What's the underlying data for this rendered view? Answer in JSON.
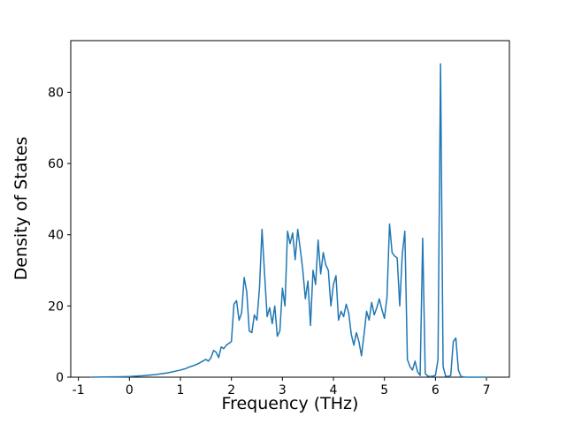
{
  "chart_data": {
    "type": "line",
    "title": "",
    "xlabel": "Frequency (THz)",
    "ylabel": "Density of States",
    "xlim": [
      -1.15,
      7.45
    ],
    "ylim": [
      0,
      94.5
    ],
    "xticks": [
      -1,
      0,
      1,
      2,
      3,
      4,
      5,
      6,
      7
    ],
    "yticks": [
      0,
      20,
      40,
      60,
      80
    ],
    "grid": false,
    "legend": "none",
    "line_color": "#1f77b4",
    "line_width": 1.5,
    "points": [
      [
        -0.75,
        0.0
      ],
      [
        -0.5,
        0.05
      ],
      [
        -0.25,
        0.1
      ],
      [
        0.0,
        0.2
      ],
      [
        0.25,
        0.4
      ],
      [
        0.5,
        0.7
      ],
      [
        0.75,
        1.2
      ],
      [
        1.0,
        2.0
      ],
      [
        1.05,
        2.2
      ],
      [
        1.1,
        2.4
      ],
      [
        1.15,
        2.7
      ],
      [
        1.2,
        3.0
      ],
      [
        1.25,
        3.2
      ],
      [
        1.3,
        3.5
      ],
      [
        1.35,
        3.8
      ],
      [
        1.4,
        4.2
      ],
      [
        1.45,
        4.6
      ],
      [
        1.5,
        5.0
      ],
      [
        1.55,
        4.5
      ],
      [
        1.6,
        5.5
      ],
      [
        1.65,
        7.5
      ],
      [
        1.7,
        7.0
      ],
      [
        1.75,
        5.5
      ],
      [
        1.8,
        8.5
      ],
      [
        1.85,
        8.0
      ],
      [
        1.9,
        9.0
      ],
      [
        1.95,
        9.5
      ],
      [
        2.0,
        10.0
      ],
      [
        2.05,
        20.5
      ],
      [
        2.1,
        21.5
      ],
      [
        2.15,
        16.0
      ],
      [
        2.2,
        18.0
      ],
      [
        2.25,
        28.0
      ],
      [
        2.3,
        24.0
      ],
      [
        2.35,
        13.0
      ],
      [
        2.4,
        12.5
      ],
      [
        2.45,
        17.5
      ],
      [
        2.5,
        16.0
      ],
      [
        2.55,
        25.0
      ],
      [
        2.6,
        41.5
      ],
      [
        2.65,
        29.0
      ],
      [
        2.7,
        17.0
      ],
      [
        2.75,
        19.5
      ],
      [
        2.8,
        15.0
      ],
      [
        2.85,
        20.0
      ],
      [
        2.9,
        11.5
      ],
      [
        2.95,
        13.0
      ],
      [
        3.0,
        25.0
      ],
      [
        3.05,
        20.0
      ],
      [
        3.1,
        41.0
      ],
      [
        3.15,
        37.5
      ],
      [
        3.2,
        40.5
      ],
      [
        3.25,
        33.0
      ],
      [
        3.3,
        41.5
      ],
      [
        3.35,
        36.0
      ],
      [
        3.4,
        30.0
      ],
      [
        3.45,
        22.0
      ],
      [
        3.5,
        27.0
      ],
      [
        3.55,
        14.5
      ],
      [
        3.6,
        30.0
      ],
      [
        3.65,
        26.0
      ],
      [
        3.7,
        38.5
      ],
      [
        3.75,
        29.0
      ],
      [
        3.8,
        35.0
      ],
      [
        3.85,
        31.5
      ],
      [
        3.9,
        30.0
      ],
      [
        3.95,
        20.0
      ],
      [
        4.0,
        26.0
      ],
      [
        4.05,
        28.5
      ],
      [
        4.1,
        16.0
      ],
      [
        4.15,
        18.5
      ],
      [
        4.2,
        17.0
      ],
      [
        4.25,
        20.5
      ],
      [
        4.3,
        18.0
      ],
      [
        4.35,
        12.0
      ],
      [
        4.4,
        9.0
      ],
      [
        4.45,
        12.5
      ],
      [
        4.5,
        10.0
      ],
      [
        4.55,
        6.0
      ],
      [
        4.6,
        12.0
      ],
      [
        4.65,
        18.5
      ],
      [
        4.7,
        16.0
      ],
      [
        4.75,
        21.0
      ],
      [
        4.8,
        17.5
      ],
      [
        4.85,
        19.5
      ],
      [
        4.9,
        22.0
      ],
      [
        4.95,
        19.0
      ],
      [
        5.0,
        16.5
      ],
      [
        5.05,
        22.5
      ],
      [
        5.1,
        43.0
      ],
      [
        5.15,
        35.0
      ],
      [
        5.2,
        34.0
      ],
      [
        5.25,
        33.5
      ],
      [
        5.3,
        20.0
      ],
      [
        5.35,
        34.5
      ],
      [
        5.4,
        41.0
      ],
      [
        5.45,
        5.0
      ],
      [
        5.5,
        3.0
      ],
      [
        5.55,
        2.0
      ],
      [
        5.6,
        4.5
      ],
      [
        5.65,
        1.5
      ],
      [
        5.7,
        0.5
      ],
      [
        5.75,
        39.0
      ],
      [
        5.8,
        1.0
      ],
      [
        5.85,
        0.3
      ],
      [
        5.9,
        0.2
      ],
      [
        5.95,
        0.3
      ],
      [
        6.0,
        0.5
      ],
      [
        6.05,
        5.0
      ],
      [
        6.1,
        88.0
      ],
      [
        6.15,
        3.0
      ],
      [
        6.2,
        0.3
      ],
      [
        6.25,
        0.2
      ],
      [
        6.3,
        0.5
      ],
      [
        6.35,
        10.0
      ],
      [
        6.4,
        11.0
      ],
      [
        6.45,
        2.0
      ],
      [
        6.5,
        0.2
      ],
      [
        6.6,
        0.0
      ],
      [
        6.8,
        0.0
      ],
      [
        7.0,
        0.0
      ]
    ]
  }
}
